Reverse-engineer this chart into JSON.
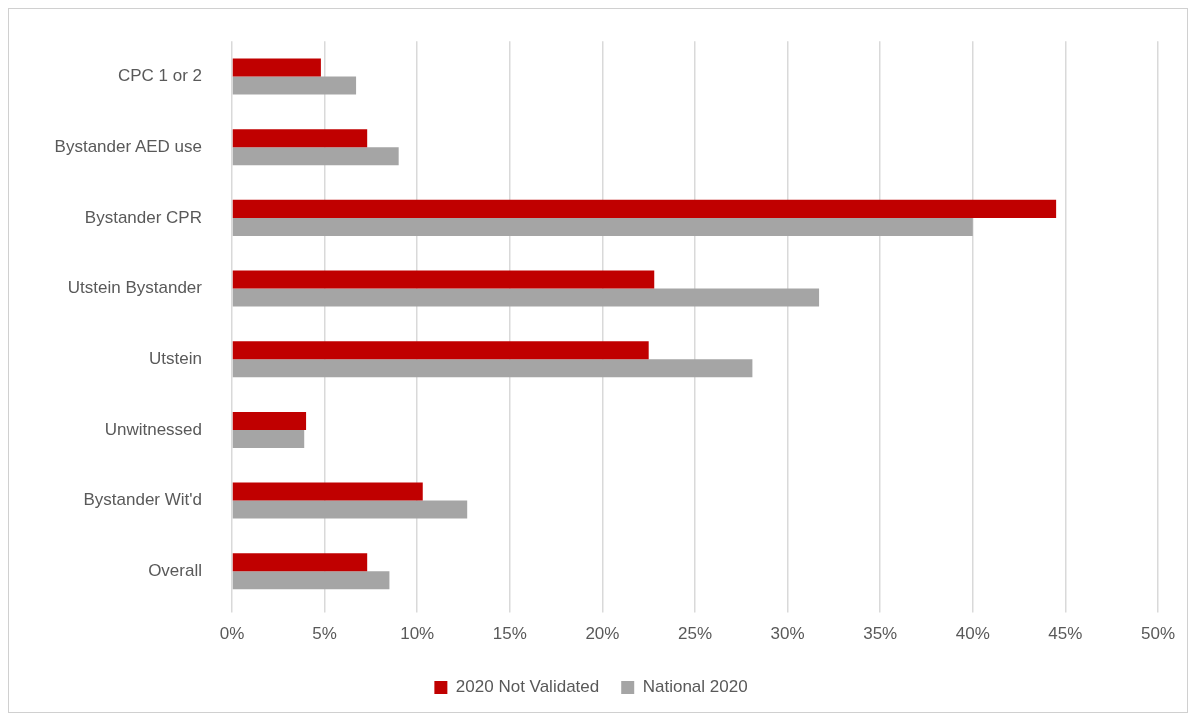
{
  "chart_data": {
    "type": "bar",
    "orientation": "horizontal",
    "categories": [
      "CPC 1 or 2",
      "Bystander AED use",
      "Bystander CPR",
      "Utstein Bystander",
      "Utstein",
      "Unwitnessed",
      "Bystander Wit'd",
      "Overall"
    ],
    "series": [
      {
        "name": "2020 Not Validated",
        "color": "#c00000",
        "values": [
          4.8,
          7.3,
          44.5,
          22.8,
          22.5,
          4.0,
          10.3,
          7.3
        ]
      },
      {
        "name": "National 2020",
        "color": "#a5a5a5",
        "values": [
          6.7,
          9.0,
          40.0,
          31.7,
          28.1,
          3.9,
          12.7,
          8.5
        ]
      }
    ],
    "xlim": [
      0,
      50
    ],
    "xticks": [
      {
        "value": 0,
        "label": "0%"
      },
      {
        "value": 5,
        "label": "5%"
      },
      {
        "value": 10,
        "label": "10%"
      },
      {
        "value": 15,
        "label": "15%"
      },
      {
        "value": 20,
        "label": "20%"
      },
      {
        "value": 25,
        "label": "25%"
      },
      {
        "value": 30,
        "label": "30%"
      },
      {
        "value": 35,
        "label": "35%"
      },
      {
        "value": 40,
        "label": "40%"
      },
      {
        "value": 45,
        "label": "45%"
      },
      {
        "value": 50,
        "label": "50%"
      }
    ],
    "grid": "x",
    "legend": "bottom"
  }
}
